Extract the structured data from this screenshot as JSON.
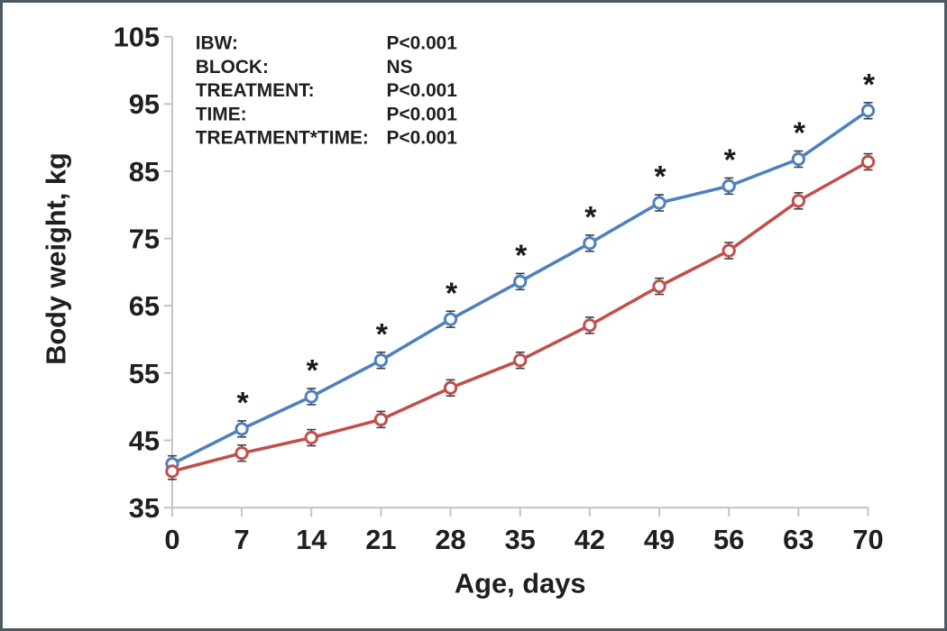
{
  "chart_data": {
    "type": "line",
    "title": "",
    "xlabel": "Age, days",
    "ylabel": "Body weight, kg",
    "x": [
      0,
      7,
      14,
      21,
      28,
      35,
      42,
      49,
      56,
      63,
      70
    ],
    "xticks": [
      0,
      7,
      14,
      21,
      28,
      35,
      42,
      49,
      56,
      63,
      70
    ],
    "yticks": [
      35,
      45,
      55,
      65,
      75,
      85,
      95,
      105
    ],
    "xlim": [
      0,
      70
    ],
    "ylim": [
      35,
      105
    ],
    "grid": false,
    "legend_position": "none",
    "series": [
      {
        "name": "blue",
        "color": "#4f81bd",
        "marker": "open-circle",
        "error_bar": 1.2,
        "values": [
          41.5,
          46.7,
          51.5,
          56.9,
          63.0,
          68.6,
          74.3,
          80.3,
          82.8,
          86.8,
          94.0
        ]
      },
      {
        "name": "red",
        "color": "#c0504d",
        "marker": "open-circle",
        "error_bar": 1.2,
        "values": [
          40.4,
          43.1,
          45.4,
          48.1,
          52.8,
          56.9,
          62.1,
          67.9,
          73.2,
          80.6,
          86.4
        ]
      }
    ],
    "significance": {
      "symbol": "*",
      "on_series": "blue",
      "days": [
        7,
        14,
        21,
        28,
        35,
        42,
        49,
        56,
        63,
        70
      ]
    },
    "annotations": [
      {
        "label": "IBW:",
        "value": "P<0.001"
      },
      {
        "label": "BLOCK:",
        "value": "NS"
      },
      {
        "label": "TREATMENT:",
        "value": "P<0.001"
      },
      {
        "label": "TIME:",
        "value": "P<0.001"
      },
      {
        "label": "TREATMENT*TIME:",
        "value": "P<0.001"
      }
    ]
  },
  "colors": {
    "axis_line": "#c3c3c3",
    "tick_text": "#1f1f1f",
    "stat_text": "#1f1f1f",
    "asterisk": "#1a1a1a",
    "error_bar": "#3c3c3c",
    "frame_border": "#4e5860",
    "background": "#ffffff"
  }
}
